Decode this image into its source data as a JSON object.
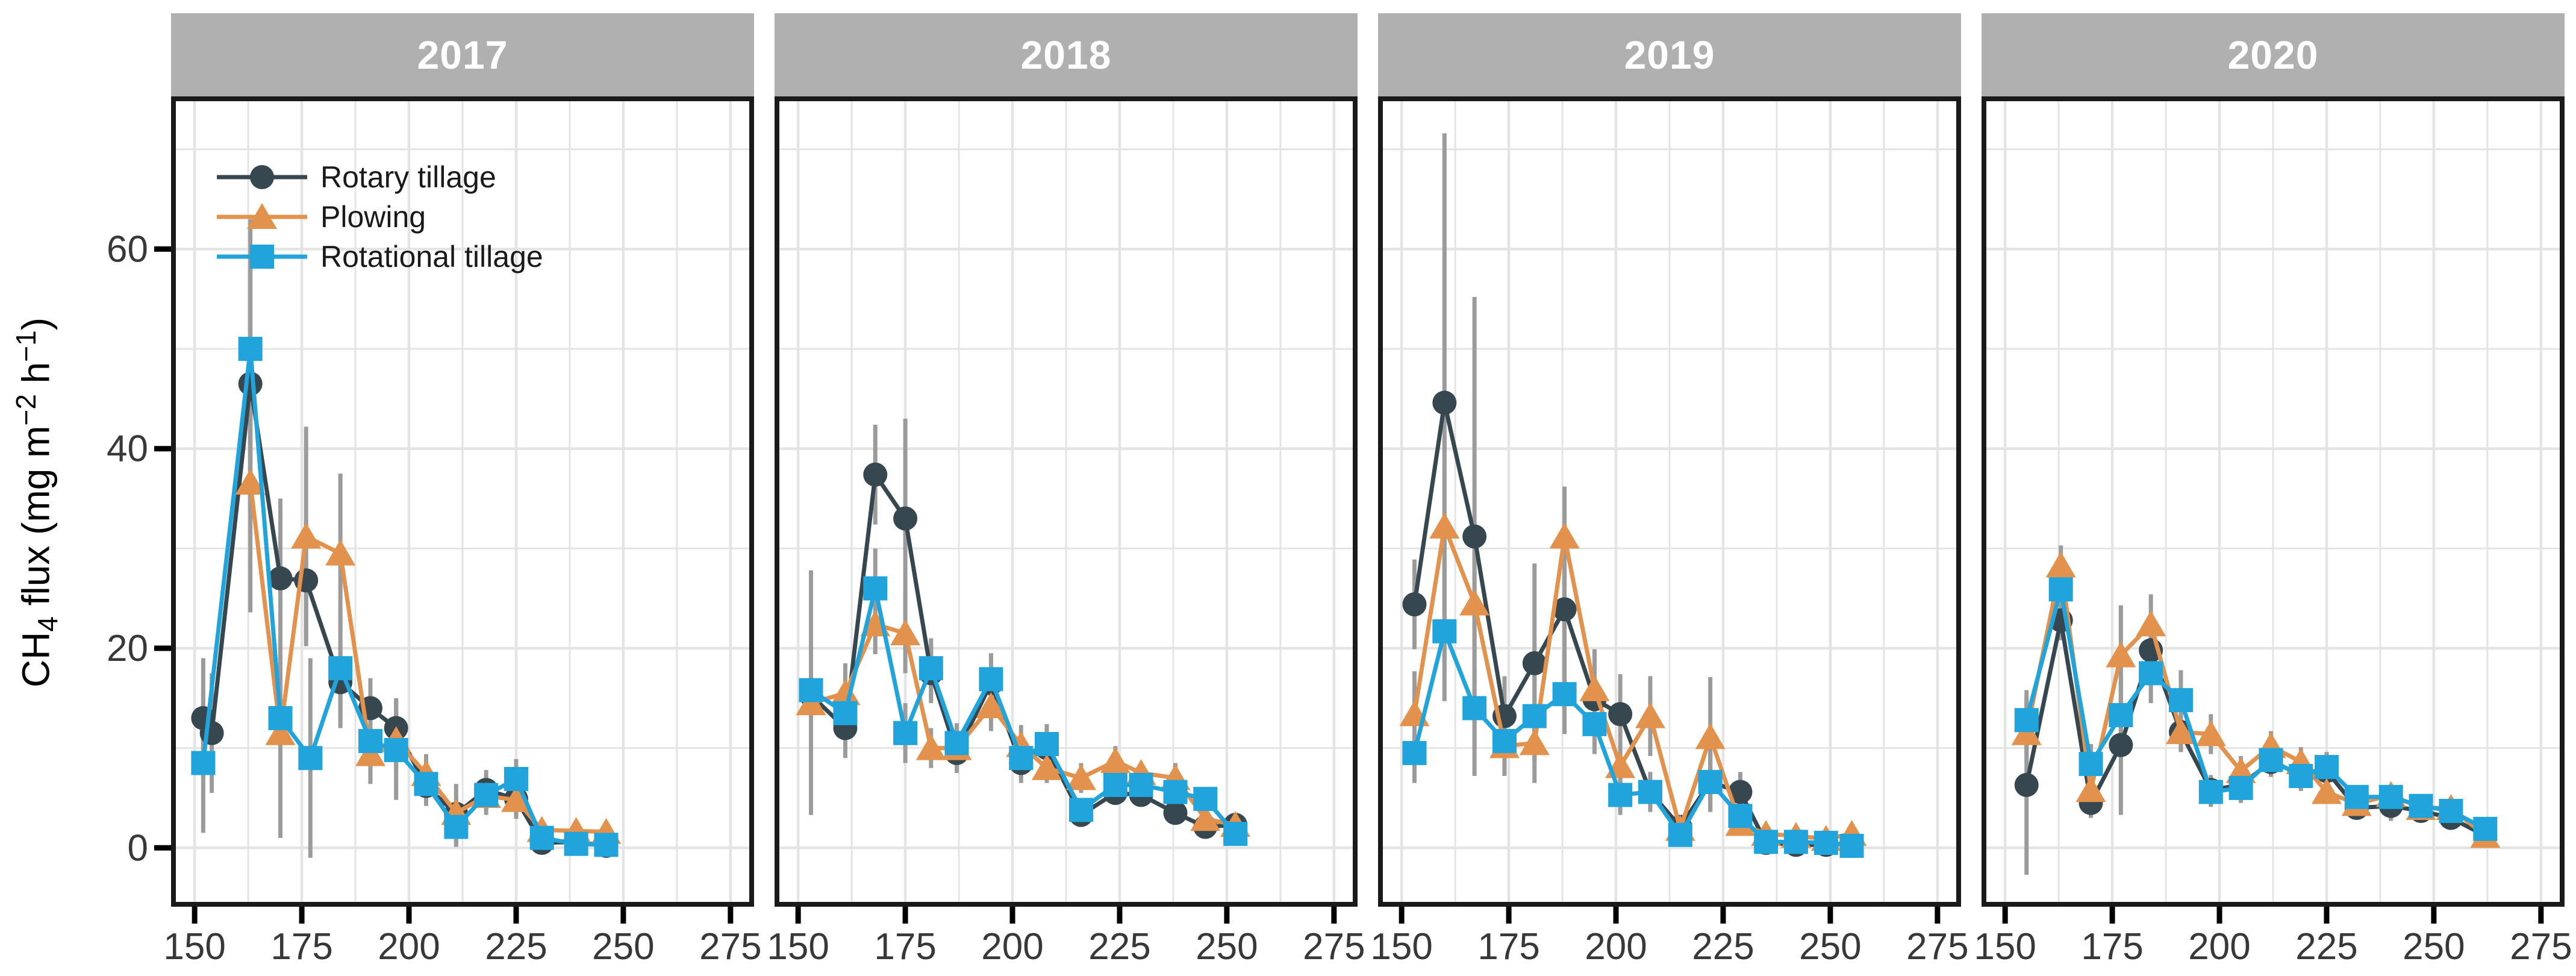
{
  "figure": {
    "description": "Faceted time-series chart of CH4 flux by tillage treatment across four years",
    "facet_labels": [
      "2017",
      "2018",
      "2019",
      "2020"
    ]
  },
  "colors": {
    "rotary": "#37474F",
    "plowing": "#E2924C",
    "rotational": "#21A4DB",
    "error_bar": "#9B9B9B",
    "gridline": "#E4E4E4",
    "strip_bg": "#B0B0B0",
    "strip_text": "#FFFFFF",
    "axis_text": "#383838",
    "panel_border": "#1A1A1A"
  },
  "legend": {
    "items": [
      {
        "label": "Rotary tillage",
        "marker": "circle",
        "color": "#37474F"
      },
      {
        "label": "Plowing",
        "marker": "triangle",
        "color": "#E2924C"
      },
      {
        "label": "Rotational tillage",
        "marker": "square",
        "color": "#21A4DB"
      }
    ]
  },
  "y_axis": {
    "label_text": "CH4 flux (mg m-2 h-1)",
    "label_parts": {
      "p1": "CH",
      "sub": "4",
      "p2": " flux (mg m",
      "sup1": "−2",
      "p3": " h",
      "sup2": "−1",
      "p4": ")"
    },
    "ticks": [
      0,
      20,
      40,
      60
    ],
    "minor_gridlines": [
      10,
      30,
      50,
      70
    ],
    "range": [
      -5.9,
      75.3
    ]
  },
  "x_axis": {
    "label_text": "",
    "ticks": [
      150,
      175,
      200,
      225,
      250,
      275
    ],
    "minor_gridlines": [
      162.5,
      187.5,
      212.5,
      237.5,
      262.5
    ],
    "range": [
      144.5,
      280.5
    ]
  },
  "chart_data": [
    {
      "type": "line",
      "title": "2017",
      "series": [
        {
          "name": "Rotary tillage",
          "marker": "circle",
          "color": "#37474F",
          "x": [
            152,
            154,
            163,
            170,
            176,
            184,
            191,
            197,
            204,
            211,
            218,
            225,
            231,
            239,
            246
          ],
          "y": [
            13,
            11.5,
            46.5,
            27,
            26.8,
            16.6,
            14,
            12,
            6.2,
            3.4,
            5.8,
            4.9,
            0.5,
            0.6,
            0.2
          ],
          "err": [
            6,
            6,
            13,
            8,
            6,
            4,
            3,
            3,
            2,
            3,
            2,
            2,
            0.5,
            0.5,
            0.5
          ]
        },
        {
          "name": "Plowing",
          "marker": "triangle",
          "color": "#E2924C",
          "x": [
            163,
            170,
            176,
            184,
            191,
            197,
            204,
            211,
            218,
            225,
            231,
            239,
            246
          ],
          "y": [
            36.6,
            11.5,
            31.2,
            29.5,
            9.4,
            10.8,
            7.4,
            3.5,
            5.2,
            4.8,
            1.8,
            1.7,
            1.6
          ],
          "err": [
            13,
            6,
            11,
            8,
            3,
            3,
            2,
            1.5,
            1.5,
            1.5,
            0.8,
            0.5,
            0.5
          ]
        },
        {
          "name": "Rotational tillage",
          "marker": "square",
          "color": "#21A4DB",
          "x": [
            152,
            163,
            170,
            177,
            184,
            191,
            197,
            204,
            211,
            218,
            225,
            231,
            239,
            246
          ],
          "y": [
            8.5,
            50,
            13,
            9,
            18,
            10.7,
            9.8,
            6.4,
            2.1,
            5.3,
            6.9,
            1.0,
            0.4,
            0.3
          ],
          "err": [
            7,
            13,
            12,
            10,
            6,
            4,
            5,
            2,
            2,
            2,
            2,
            0.5,
            0.5,
            0.5
          ]
        }
      ]
    },
    {
      "type": "line",
      "title": "2018",
      "series": [
        {
          "name": "Rotary tillage",
          "marker": "circle",
          "color": "#37474F",
          "x": [
            153,
            161,
            168,
            175,
            181,
            187,
            195,
            202,
            208,
            216,
            224,
            230,
            238,
            245,
            252
          ],
          "y": [
            15.3,
            12,
            37.4,
            33,
            17.5,
            9.5,
            16.5,
            8.5,
            10,
            3.3,
            5.5,
            5.3,
            3.5,
            2.1,
            2.3
          ],
          "err": [
            12,
            3,
            5,
            10,
            3,
            2,
            3,
            2,
            2,
            1,
            1,
            1,
            1,
            0.8,
            0.8
          ]
        },
        {
          "name": "Plowing",
          "marker": "triangle",
          "color": "#E2924C",
          "x": [
            153,
            161,
            168,
            175,
            181,
            187,
            195,
            202,
            208,
            216,
            224,
            230,
            238,
            245,
            252
          ],
          "y": [
            14.5,
            15.5,
            22.4,
            21.5,
            10,
            10,
            14.2,
            10.3,
            8,
            7,
            8.7,
            7.5,
            7,
            2.9,
            2.3
          ],
          "err": [
            5,
            3,
            3,
            4,
            2,
            2,
            2.5,
            2,
            1.5,
            1.5,
            1.5,
            1,
            1.5,
            1,
            0.8
          ]
        },
        {
          "name": "Rotational tillage",
          "marker": "square",
          "color": "#21A4DB",
          "x": [
            153,
            161,
            168,
            175,
            181,
            187,
            195,
            202,
            208,
            216,
            224,
            230,
            238,
            245,
            252
          ],
          "y": [
            15.8,
            13.5,
            26,
            11.5,
            18,
            10.5,
            16.9,
            9,
            10.4,
            3.8,
            6.3,
            6.3,
            5.6,
            4.9,
            1.4
          ],
          "err": [
            12,
            3,
            4,
            3,
            3,
            2,
            2.5,
            2,
            2,
            1,
            1,
            1,
            1,
            1,
            0.5
          ]
        }
      ]
    },
    {
      "type": "line",
      "title": "2019",
      "series": [
        {
          "name": "Rotary tillage",
          "marker": "circle",
          "color": "#37474F",
          "x": [
            153,
            160,
            167,
            174,
            181,
            188,
            195,
            201,
            208,
            215,
            222,
            229,
            235,
            242,
            249,
            255
          ],
          "y": [
            24.4,
            44.6,
            31.2,
            13.2,
            18.5,
            23.9,
            14.9,
            13.4,
            5.6,
            2.1,
            6.6,
            5.6,
            0.5,
            0.3,
            0.3,
            0.5
          ],
          "err": [
            4.5,
            27,
            24,
            4,
            10,
            8,
            5,
            4,
            2,
            1,
            3,
            2,
            0.5,
            0.5,
            0.5,
            0.5
          ]
        },
        {
          "name": "Plowing",
          "marker": "triangle",
          "color": "#E2924C",
          "x": [
            153,
            160,
            167,
            174,
            181,
            188,
            195,
            201,
            208,
            215,
            222,
            229,
            235,
            242,
            249,
            255
          ],
          "y": [
            13.4,
            32.2,
            24.5,
            10.2,
            10.5,
            31.2,
            15.9,
            8.2,
            13.2,
            1.9,
            11.1,
            2.4,
            1.4,
            1.2,
            0.9,
            1.4
          ],
          "err": [
            4.3,
            9,
            8,
            3,
            4,
            5,
            4,
            2,
            4,
            1,
            6,
            1,
            0.5,
            0.5,
            0.5,
            0.5
          ]
        },
        {
          "name": "Rotational tillage",
          "marker": "square",
          "color": "#21A4DB",
          "x": [
            153,
            160,
            167,
            174,
            181,
            188,
            195,
            201,
            208,
            215,
            222,
            229,
            235,
            242,
            249,
            255
          ],
          "y": [
            9.5,
            21.7,
            14,
            10.7,
            13.2,
            15.4,
            12.4,
            5.3,
            5.6,
            1.3,
            6.6,
            3.2,
            0.6,
            0.6,
            0.5,
            0.2
          ],
          "err": [
            3,
            7,
            4,
            3,
            4,
            4,
            3,
            2,
            2,
            1,
            3,
            1,
            0.5,
            0.5,
            0.5,
            0.5
          ]
        }
      ]
    },
    {
      "type": "line",
      "title": "2020",
      "series": [
        {
          "name": "Rotary tillage",
          "marker": "circle",
          "color": "#37474F",
          "x": [
            155,
            163,
            170,
            177,
            184,
            191,
            198,
            205,
            212,
            219,
            225,
            232,
            240,
            247,
            254,
            262
          ],
          "y": [
            6.3,
            22.8,
            4.5,
            10.3,
            19.8,
            11.6,
            5.8,
            6.3,
            8.6,
            7.4,
            7.7,
            4.0,
            4.2,
            3.7,
            3.0,
            1.2
          ],
          "err": [
            9,
            2,
            1.5,
            7,
            2,
            2,
            1.5,
            1.5,
            1.5,
            1.5,
            1.5,
            1,
            1.5,
            1,
            1,
            0.5
          ]
        },
        {
          "name": "Plowing",
          "marker": "triangle",
          "color": "#E2924C",
          "x": [
            155,
            163,
            170,
            177,
            184,
            191,
            198,
            205,
            212,
            219,
            225,
            232,
            240,
            247,
            254,
            262
          ],
          "y": [
            11.5,
            28.3,
            5.8,
            19.3,
            22.4,
            11.6,
            11.4,
            7.7,
            10.2,
            8.6,
            5.6,
            4.4,
            5.3,
            4.0,
            4.0,
            1.2
          ],
          "err": [
            3,
            2,
            1.5,
            5,
            3,
            2,
            2,
            1.5,
            1.5,
            1.5,
            1,
            1,
            1,
            1,
            1,
            0.5
          ]
        },
        {
          "name": "Rotational tillage",
          "marker": "square",
          "color": "#21A4DB",
          "x": [
            155,
            163,
            170,
            177,
            184,
            191,
            198,
            205,
            212,
            219,
            225,
            232,
            240,
            247,
            254,
            262
          ],
          "y": [
            12.8,
            25.9,
            8.4,
            13.3,
            17.5,
            14.8,
            5.6,
            6.0,
            8.8,
            7.2,
            8.1,
            5.1,
            5.1,
            4.2,
            3.7,
            1.9
          ],
          "err": [
            3,
            2.5,
            2,
            3,
            3,
            3,
            1.5,
            1.5,
            1.5,
            1.5,
            1.5,
            1,
            1,
            1,
            1,
            0.5
          ]
        }
      ]
    }
  ]
}
